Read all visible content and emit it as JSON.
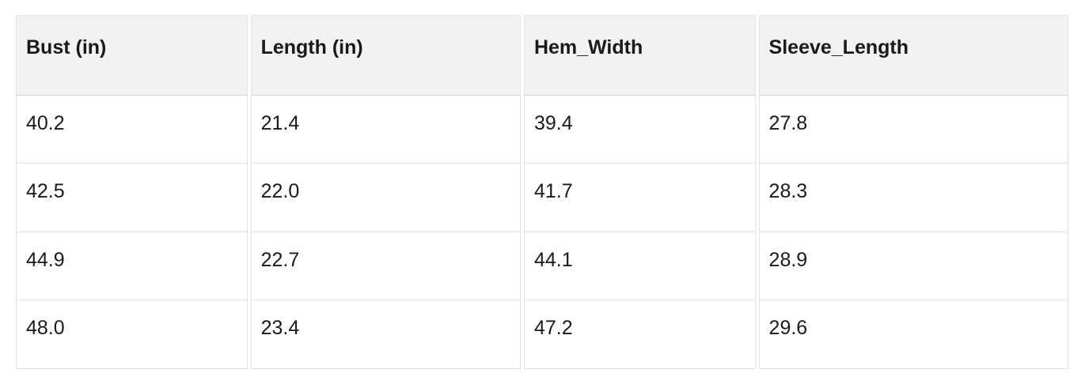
{
  "chart_data": {
    "type": "table",
    "columns": [
      "Bust (in)",
      "Length (in)",
      "Hem_Width",
      "Sleeve_Length"
    ],
    "rows": [
      [
        "40.2",
        "21.4",
        "39.4",
        "27.8"
      ],
      [
        "42.5",
        "22.0",
        "41.7",
        "28.3"
      ],
      [
        "44.9",
        "22.7",
        "44.1",
        "28.9"
      ],
      [
        "48.0",
        "23.4",
        "47.2",
        "29.6"
      ]
    ]
  },
  "colors": {
    "background": "#ffffff",
    "header_bg": "#f2f2f2",
    "cell_border": "#e3e3e3",
    "header_bottom_border": "#d4d4d4",
    "text": "#1a1a1a"
  }
}
